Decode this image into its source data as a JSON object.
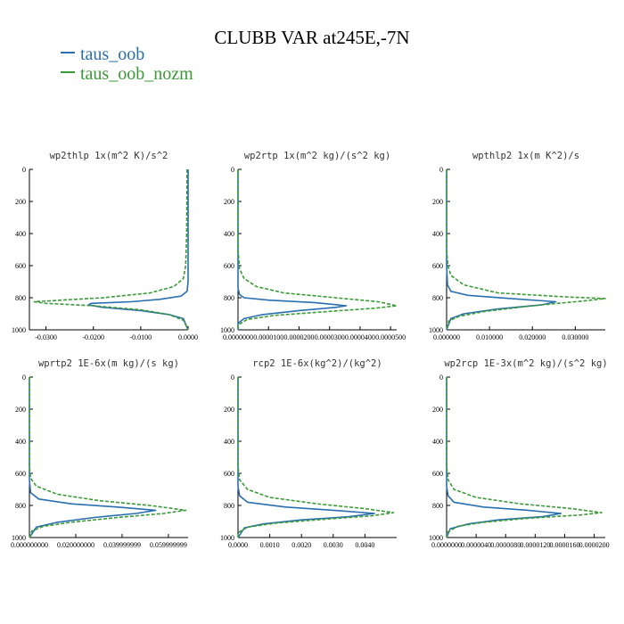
{
  "title": "CLUBB VAR at245E,-7N",
  "legend": [
    {
      "label": "taus_oob",
      "color": "#2a6fb0"
    },
    {
      "label": "taus_oob_nozm",
      "color": "#3a9a35"
    }
  ],
  "chart_data": [
    {
      "type": "line",
      "title": "wp2thlp   1x(m^2 K)/s^2",
      "xlim": [
        -0.0335,
        0.0
      ],
      "ylim": [
        0,
        1000
      ],
      "xticks": [
        -0.03,
        -0.02,
        -0.01,
        0.0
      ],
      "xtick_labels": [
        "-0.0300",
        "-0.0200",
        "-0.0100",
        "0.0000"
      ],
      "yticks": [
        0,
        200,
        400,
        600,
        800,
        1000
      ],
      "y_reversed": true,
      "series": [
        {
          "name": "taus_oob",
          "style": "solid",
          "points": [
            [
              0.0,
              0
            ],
            [
              0.0,
              600
            ],
            [
              0.0,
              700
            ],
            [
              -0.0002,
              760
            ],
            [
              -0.0015,
              790
            ],
            [
              -0.006,
              810
            ],
            [
              -0.012,
              825
            ],
            [
              -0.0205,
              835
            ],
            [
              -0.021,
              845
            ],
            [
              -0.018,
              860
            ],
            [
              -0.01,
              880
            ],
            [
              -0.004,
              905
            ],
            [
              -0.001,
              930
            ],
            [
              0.0,
              1000
            ]
          ]
        },
        {
          "name": "taus_oob_nozm",
          "style": "dashed",
          "points": [
            [
              -0.0002,
              0
            ],
            [
              -0.0003,
              400
            ],
            [
              -0.0005,
              600
            ],
            [
              -0.001,
              680
            ],
            [
              -0.003,
              730
            ],
            [
              -0.008,
              770
            ],
            [
              -0.018,
              800
            ],
            [
              -0.0325,
              825
            ],
            [
              -0.03,
              835
            ],
            [
              -0.02,
              850
            ],
            [
              -0.01,
              875
            ],
            [
              -0.004,
              905
            ],
            [
              -0.001,
              940
            ],
            [
              0.0,
              1000
            ]
          ]
        }
      ]
    },
    {
      "type": "line",
      "title": "wp2rtp   1x(m^2 kg)/(s^2 kg)",
      "xlim": [
        0,
        5.2e-05
      ],
      "ylim": [
        0,
        1000
      ],
      "xticks": [
        0,
        1e-05,
        2e-05,
        3e-05,
        4e-05,
        5e-05
      ],
      "xtick_labels": [
        "0.0000000",
        "0.0000100",
        "0.0000200",
        "0.0000300",
        "0.0000400",
        "0.0000500"
      ],
      "yticks": [
        0,
        200,
        400,
        600,
        800,
        1000
      ],
      "y_reversed": true,
      "series": [
        {
          "name": "taus_oob",
          "style": "solid",
          "points": [
            [
              0,
              0
            ],
            [
              0,
              600
            ],
            [
              0,
              740
            ],
            [
              5e-07,
              780
            ],
            [
              2e-06,
              800
            ],
            [
              1e-05,
              815
            ],
            [
              2.5e-05,
              830
            ],
            [
              3.55e-05,
              850
            ],
            [
              3.2e-05,
              860
            ],
            [
              2e-05,
              880
            ],
            [
              8e-06,
              905
            ],
            [
              2e-06,
              930
            ],
            [
              0,
              960
            ],
            [
              0,
              1000
            ]
          ]
        },
        {
          "name": "taus_oob_nozm",
          "style": "dashed",
          "points": [
            [
              0,
              0
            ],
            [
              0,
              500
            ],
            [
              5e-07,
              620
            ],
            [
              2e-06,
              680
            ],
            [
              6e-06,
              730
            ],
            [
              1.5e-05,
              770
            ],
            [
              3.2e-05,
              800
            ],
            [
              4.6e-05,
              825
            ],
            [
              5.2e-05,
              850
            ],
            [
              4.5e-05,
              865
            ],
            [
              3e-05,
              885
            ],
            [
              1.2e-05,
              910
            ],
            [
              3e-06,
              935
            ],
            [
              0,
              970
            ],
            [
              0,
              1000
            ]
          ]
        }
      ]
    },
    {
      "type": "line",
      "title": "wpthlp2   1x(m K^2)/s",
      "xlim": [
        0,
        0.037
      ],
      "ylim": [
        0,
        1000
      ],
      "xticks": [
        0,
        0.01,
        0.02,
        0.03
      ],
      "xtick_labels": [
        "0.000000",
        "0.010000",
        "0.020000",
        "0.030000"
      ],
      "yticks": [
        0,
        200,
        400,
        600,
        800,
        1000
      ],
      "y_reversed": true,
      "series": [
        {
          "name": "taus_oob",
          "style": "solid",
          "points": [
            [
              0,
              0
            ],
            [
              0,
              600
            ],
            [
              0.0002,
              720
            ],
            [
              0.001,
              760
            ],
            [
              0.005,
              785
            ],
            [
              0.015,
              805
            ],
            [
              0.0255,
              825
            ],
            [
              0.022,
              845
            ],
            [
              0.012,
              870
            ],
            [
              0.004,
              900
            ],
            [
              0.001,
              930
            ],
            [
              0,
              1000
            ]
          ]
        },
        {
          "name": "taus_oob_nozm",
          "style": "dashed",
          "points": [
            [
              0,
              0
            ],
            [
              0,
              500
            ],
            [
              0.0003,
              600
            ],
            [
              0.001,
              660
            ],
            [
              0.004,
              720
            ],
            [
              0.012,
              770
            ],
            [
              0.028,
              795
            ],
            [
              0.037,
              805
            ],
            [
              0.032,
              820
            ],
            [
              0.02,
              850
            ],
            [
              0.009,
              885
            ],
            [
              0.003,
              915
            ],
            [
              0.0005,
              945
            ],
            [
              0,
              1000
            ]
          ]
        }
      ]
    },
    {
      "type": "line",
      "title": "wprtp2   1E-6x(m kg)/(s kg)",
      "xlim": [
        0,
        0.0685
      ],
      "ylim": [
        0,
        1000
      ],
      "xticks": [
        0,
        0.02,
        0.04,
        0.06
      ],
      "xtick_labels": [
        "0.000000000",
        "0.020000000",
        "0.039999999",
        "0.059999999"
      ],
      "yticks": [
        0,
        200,
        400,
        600,
        800,
        1000
      ],
      "y_reversed": true,
      "series": [
        {
          "name": "taus_oob",
          "style": "solid",
          "points": [
            [
              0,
              0
            ],
            [
              0,
              640
            ],
            [
              0.0005,
              720
            ],
            [
              0.004,
              760
            ],
            [
              0.018,
              790
            ],
            [
              0.038,
              810
            ],
            [
              0.0545,
              830
            ],
            [
              0.046,
              850
            ],
            [
              0.028,
              875
            ],
            [
              0.012,
              905
            ],
            [
              0.003,
              935
            ],
            [
              0,
              1000
            ]
          ]
        },
        {
          "name": "taus_oob_nozm",
          "style": "dashed",
          "points": [
            [
              0,
              0
            ],
            [
              0,
              560
            ],
            [
              0.0005,
              630
            ],
            [
              0.003,
              680
            ],
            [
              0.012,
              730
            ],
            [
              0.03,
              770
            ],
            [
              0.052,
              800
            ],
            [
              0.0675,
              830
            ],
            [
              0.058,
              850
            ],
            [
              0.038,
              875
            ],
            [
              0.018,
              905
            ],
            [
              0.006,
              930
            ],
            [
              0.001,
              960
            ],
            [
              0,
              1000
            ]
          ]
        }
      ]
    },
    {
      "type": "line",
      "title": "rcp2   1E-6x(kg^2)/(kg^2)",
      "xlim": [
        0,
        0.005
      ],
      "ylim": [
        0,
        1000
      ],
      "xticks": [
        0,
        0.001,
        0.002,
        0.003,
        0.004
      ],
      "xtick_labels": [
        "0.0000",
        "0.0010",
        "0.0020",
        "0.0030",
        "0.0040"
      ],
      "yticks": [
        0,
        200,
        400,
        600,
        800,
        1000
      ],
      "y_reversed": true,
      "series": [
        {
          "name": "taus_oob",
          "style": "solid",
          "points": [
            [
              0,
              0
            ],
            [
              0,
              680
            ],
            [
              5e-05,
              740
            ],
            [
              0.0003,
              780
            ],
            [
              0.0015,
              810
            ],
            [
              0.003,
              830
            ],
            [
              0.0043,
              850
            ],
            [
              0.0035,
              870
            ],
            [
              0.002,
              890
            ],
            [
              0.0008,
              915
            ],
            [
              0.0002,
              940
            ],
            [
              0,
              1000
            ]
          ]
        },
        {
          "name": "taus_oob_nozm",
          "style": "dashed",
          "points": [
            [
              0,
              0
            ],
            [
              0,
              560
            ],
            [
              5e-05,
              640
            ],
            [
              0.0003,
              700
            ],
            [
              0.001,
              750
            ],
            [
              0.0025,
              790
            ],
            [
              0.004,
              820
            ],
            [
              0.0049,
              845
            ],
            [
              0.0042,
              865
            ],
            [
              0.0028,
              885
            ],
            [
              0.0012,
              910
            ],
            [
              0.0003,
              935
            ],
            [
              0,
              970
            ],
            [
              0,
              1000
            ]
          ]
        }
      ]
    },
    {
      "type": "line",
      "title": "wp2rcp   1E-3x(m^2 kg)/(s^2 kg)",
      "xlim": [
        0,
        2.15e-05
      ],
      "ylim": [
        0,
        1000
      ],
      "xticks": [
        0,
        4e-06,
        8e-06,
        1.2e-05,
        1.6e-05,
        2e-05
      ],
      "xtick_labels": [
        "0.0000000",
        "0.0000040",
        "0.0000080",
        "0.0000120",
        "0.0000160",
        "0.0000200"
      ],
      "yticks": [
        0,
        200,
        400,
        600,
        800,
        1000
      ],
      "y_reversed": true,
      "series": [
        {
          "name": "taus_oob",
          "style": "solid",
          "points": [
            [
              0,
              0
            ],
            [
              0,
              680
            ],
            [
              2e-07,
              740
            ],
            [
              1e-06,
              780
            ],
            [
              5e-06,
              810
            ],
            [
              1.1e-05,
              830
            ],
            [
              1.55e-05,
              850
            ],
            [
              1.3e-05,
              870
            ],
            [
              7e-06,
              890
            ],
            [
              3e-06,
              915
            ],
            [
              5e-07,
              945
            ],
            [
              0,
              1000
            ]
          ]
        },
        {
          "name": "taus_oob_nozm",
          "style": "dashed",
          "points": [
            [
              0,
              0
            ],
            [
              0,
              560
            ],
            [
              2e-07,
              640
            ],
            [
              1e-06,
              700
            ],
            [
              4e-06,
              750
            ],
            [
              1e-05,
              790
            ],
            [
              1.7e-05,
              820
            ],
            [
              2.1e-05,
              845
            ],
            [
              1.8e-05,
              860
            ],
            [
              1.1e-05,
              880
            ],
            [
              5e-06,
              905
            ],
            [
              1.5e-06,
              930
            ],
            [
              0,
              970
            ],
            [
              0,
              1000
            ]
          ]
        }
      ]
    }
  ]
}
